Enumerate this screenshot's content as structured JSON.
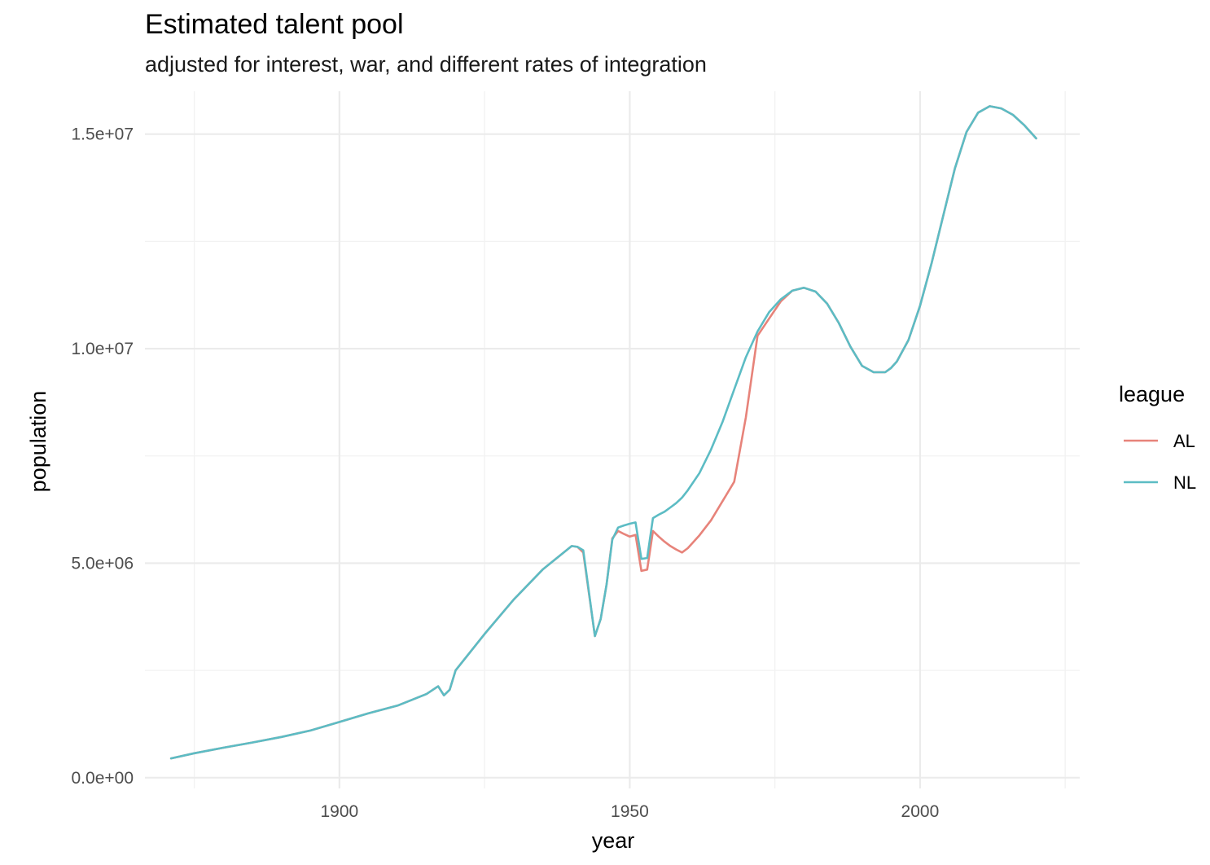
{
  "chart_data": {
    "type": "line",
    "title": "Estimated talent pool",
    "subtitle": "adjusted for interest, war, and different rates of integration",
    "xlabel": "year",
    "ylabel": "population",
    "xlim": [
      1866.5,
      2027.5
    ],
    "ylim": [
      -250000,
      16000000
    ],
    "x_ticks": [
      1900,
      1950,
      2000
    ],
    "x_tick_labels": [
      "1900",
      "1950",
      "2000"
    ],
    "x_minor_ticks": [
      1875,
      1925,
      1975,
      2025
    ],
    "y_ticks": [
      0,
      5000000,
      10000000,
      15000000
    ],
    "y_tick_labels": [
      "0.0e+00",
      "5.0e+06",
      "1.0e+07",
      "1.5e+07"
    ],
    "y_minor_ticks": [
      2500000,
      7500000,
      12500000
    ],
    "grid": true,
    "legend": {
      "title": "league",
      "position": "right"
    },
    "series": [
      {
        "name": "AL",
        "color": "#E7837A",
        "x": [
          1871,
          1875,
          1880,
          1885,
          1890,
          1895,
          1900,
          1905,
          1910,
          1915,
          1917,
          1918,
          1919,
          1920,
          1925,
          1930,
          1935,
          1940,
          1941,
          1942,
          1944,
          1945,
          1946,
          1947,
          1948,
          1949,
          1950,
          1951,
          1952,
          1953,
          1954,
          1955,
          1956,
          1957,
          1958,
          1959,
          1960,
          1962,
          1964,
          1966,
          1968,
          1970,
          1972,
          1974,
          1976,
          1978,
          1980,
          1982,
          1984,
          1986,
          1988,
          1990,
          1992,
          1994,
          1995,
          1996,
          1998,
          2000,
          2002,
          2004,
          2006,
          2008,
          2010,
          2012,
          2014,
          2016,
          2018,
          2020
        ],
        "y": [
          450000,
          570000,
          700000,
          820000,
          950000,
          1100000,
          1300000,
          1500000,
          1680000,
          1950000,
          2130000,
          1920000,
          2050000,
          2500000,
          3350000,
          4150000,
          4850000,
          5400000,
          5380000,
          5250000,
          3300000,
          3700000,
          4500000,
          5580000,
          5750000,
          5680000,
          5620000,
          5660000,
          4820000,
          4850000,
          5750000,
          5620000,
          5500000,
          5400000,
          5320000,
          5250000,
          5350000,
          5650000,
          6000000,
          6450000,
          6900000,
          8400000,
          10300000,
          10700000,
          11100000,
          11350000,
          11420000,
          11330000,
          11050000,
          10600000,
          10050000,
          9600000,
          9450000,
          9450000,
          9550000,
          9700000,
          10200000,
          11000000,
          12000000,
          13100000,
          14200000,
          15050000,
          15500000,
          15650000,
          15600000,
          15450000,
          15200000,
          14900000
        ]
      },
      {
        "name": "NL",
        "color": "#5CBCC4",
        "x": [
          1871,
          1875,
          1880,
          1885,
          1890,
          1895,
          1900,
          1905,
          1910,
          1915,
          1917,
          1918,
          1919,
          1920,
          1925,
          1930,
          1935,
          1940,
          1941,
          1942,
          1944,
          1945,
          1946,
          1947,
          1948,
          1949,
          1950,
          1951,
          1952,
          1953,
          1954,
          1955,
          1956,
          1957,
          1958,
          1959,
          1960,
          1962,
          1964,
          1966,
          1968,
          1970,
          1972,
          1974,
          1976,
          1978,
          1980,
          1982,
          1984,
          1986,
          1988,
          1990,
          1992,
          1994,
          1995,
          1996,
          1998,
          2000,
          2002,
          2004,
          2006,
          2008,
          2010,
          2012,
          2014,
          2016,
          2018,
          2020
        ],
        "y": [
          450000,
          570000,
          700000,
          820000,
          950000,
          1100000,
          1300000,
          1500000,
          1680000,
          1950000,
          2130000,
          1920000,
          2050000,
          2500000,
          3350000,
          4150000,
          4850000,
          5400000,
          5380000,
          5300000,
          3300000,
          3700000,
          4500000,
          5550000,
          5830000,
          5880000,
          5920000,
          5950000,
          5100000,
          5120000,
          6050000,
          6130000,
          6200000,
          6300000,
          6400000,
          6530000,
          6700000,
          7100000,
          7650000,
          8300000,
          9050000,
          9800000,
          10400000,
          10850000,
          11150000,
          11350000,
          11420000,
          11330000,
          11050000,
          10600000,
          10050000,
          9600000,
          9450000,
          9450000,
          9550000,
          9700000,
          10200000,
          11000000,
          12000000,
          13100000,
          14200000,
          15050000,
          15500000,
          15650000,
          15600000,
          15450000,
          15200000,
          14900000
        ]
      }
    ]
  }
}
